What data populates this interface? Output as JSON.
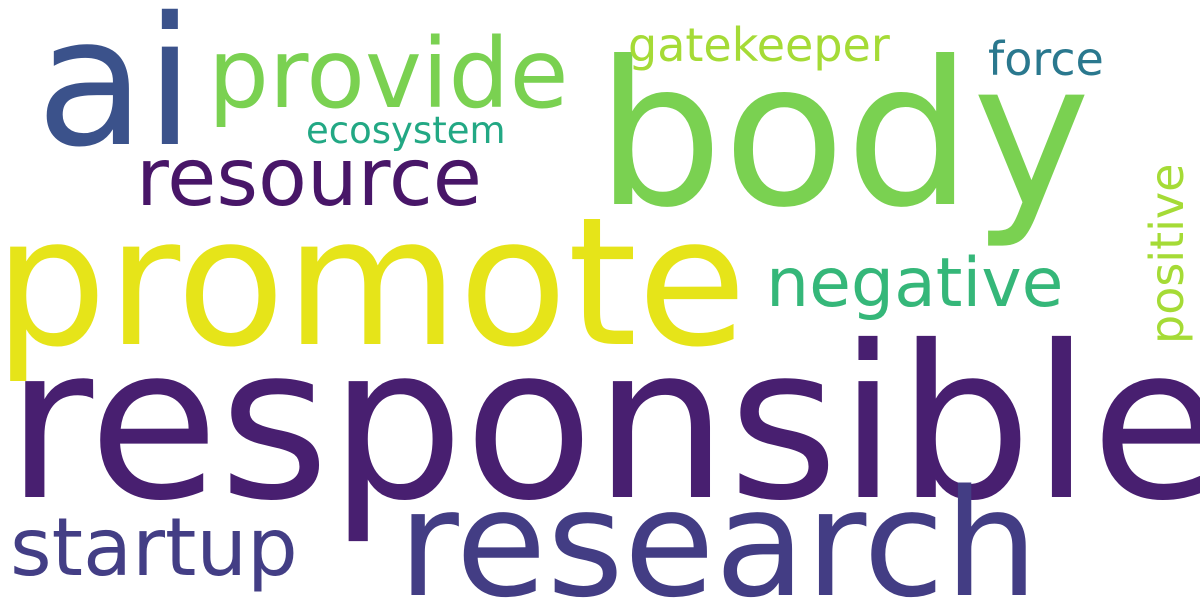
{
  "words": [
    {
      "key": "responsible",
      "text": "responsible",
      "color": "#481f70"
    },
    {
      "key": "promote",
      "text": "promote",
      "color": "#e6e419"
    },
    {
      "key": "research",
      "text": "research",
      "color": "#433d84"
    },
    {
      "key": "body",
      "text": "body",
      "color": "#7ad151"
    },
    {
      "key": "ai",
      "text": "ai",
      "color": "#3b528b"
    },
    {
      "key": "provide",
      "text": "provide",
      "color": "#7ad151"
    },
    {
      "key": "resource",
      "text": "resource",
      "color": "#481668"
    },
    {
      "key": "negative",
      "text": "negative",
      "color": "#35b779"
    },
    {
      "key": "startup",
      "text": "startup",
      "color": "#433e85"
    },
    {
      "key": "gatekeeper",
      "text": "gatekeeper",
      "color": "#a5db36"
    },
    {
      "key": "force",
      "text": "force",
      "color": "#2a788e"
    },
    {
      "key": "ecosystem",
      "text": "ecosystem",
      "color": "#22a884"
    },
    {
      "key": "positive",
      "text": "positive",
      "color": "#a5db36"
    }
  ]
}
